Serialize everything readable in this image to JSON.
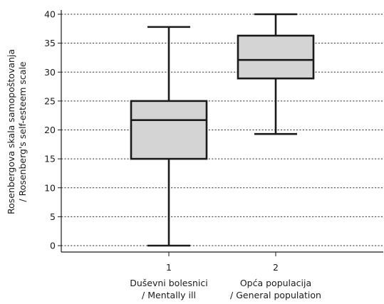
{
  "chart_data": {
    "type": "box",
    "ylabel_line1": "Rosenbergova skala samopoštovanja",
    "ylabel_line2": "/ Rosenberg's self-esteem scale",
    "ylim": [
      0,
      40
    ],
    "yticks": [
      "0",
      "5",
      "10",
      "15",
      "20",
      "25",
      "30",
      "35",
      "40"
    ],
    "grid": true,
    "categories": [
      {
        "tick": "1",
        "label_line1": "Duševni bolesnici",
        "label_line2": "/ Mentally ill"
      },
      {
        "tick": "2",
        "label_line1": "Opća populacija",
        "label_line2": "/ General population"
      }
    ],
    "boxes": [
      {
        "min": 0,
        "q1": 15,
        "median": 21.7,
        "q3": 25,
        "max": 37.8
      },
      {
        "min": 19.3,
        "q1": 28.9,
        "median": 32.1,
        "q3": 36.3,
        "max": 40
      }
    ],
    "colors": {
      "box_fill": "#d4d4d4",
      "stroke": "#1a1a1a",
      "grid": "#333333"
    }
  }
}
